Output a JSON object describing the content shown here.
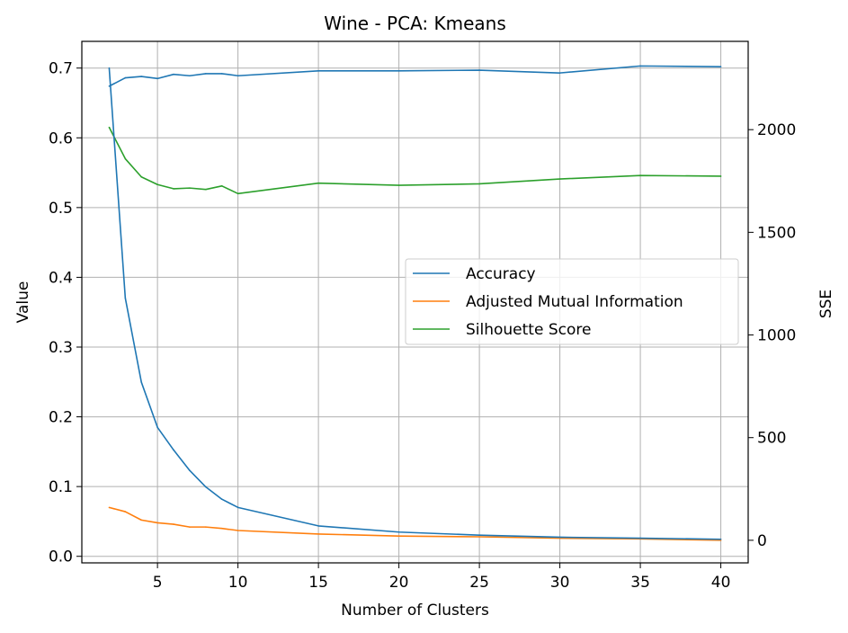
{
  "chart_data": {
    "type": "line",
    "title": "Wine - PCA: Kmeans",
    "xlabel": "Number of Clusters",
    "ylabel": "Value",
    "y2label": "SSE",
    "xlim": [
      0.3,
      41.7
    ],
    "ylim": [
      -0.0094,
      0.7383
    ],
    "y2lim": [
      -110,
      2430
    ],
    "x_ticks": [
      5,
      10,
      15,
      20,
      25,
      30,
      35,
      40
    ],
    "y_ticks": [
      0.0,
      0.1,
      0.2,
      0.3,
      0.4,
      0.5,
      0.6,
      0.7
    ],
    "y_tick_labels": [
      "0.0",
      "0.1",
      "0.2",
      "0.3",
      "0.4",
      "0.5",
      "0.6",
      "0.7"
    ],
    "y2_ticks": [
      0,
      500,
      1000,
      1500,
      2000
    ],
    "grid": true,
    "legend_position": "center-right",
    "x": [
      2,
      3,
      4,
      5,
      6,
      7,
      8,
      9,
      10,
      15,
      20,
      25,
      30,
      35,
      40
    ],
    "series": [
      {
        "name": "Accuracy",
        "axis": "left",
        "color": "#1f77b4",
        "values": [
          0.674,
          0.686,
          0.688,
          0.685,
          0.691,
          0.689,
          0.692,
          0.692,
          0.689,
          0.696,
          0.696,
          0.697,
          0.693,
          0.703,
          0.702
        ]
      },
      {
        "name": "Adjusted Mutual Information",
        "axis": "left",
        "color": "#ff7f0e",
        "values": [
          0.07,
          0.064,
          0.052,
          0.048,
          0.046,
          0.042,
          0.042,
          0.04,
          0.037,
          0.032,
          0.029,
          0.028,
          0.026,
          0.025,
          0.023
        ]
      },
      {
        "name": "Silhouette Score",
        "axis": "left",
        "color": "#2ca02c",
        "values": [
          0.615,
          0.57,
          0.544,
          0.533,
          0.527,
          0.528,
          0.526,
          0.531,
          0.52,
          0.535,
          0.532,
          0.534,
          0.541,
          0.546,
          0.545
        ]
      },
      {
        "axis": "right",
        "color": "#1f77b4",
        "values": [
          2300,
          1180,
          770,
          550,
          440,
          340,
          260,
          200,
          160,
          70,
          40,
          25,
          15,
          10,
          5
        ]
      }
    ]
  }
}
